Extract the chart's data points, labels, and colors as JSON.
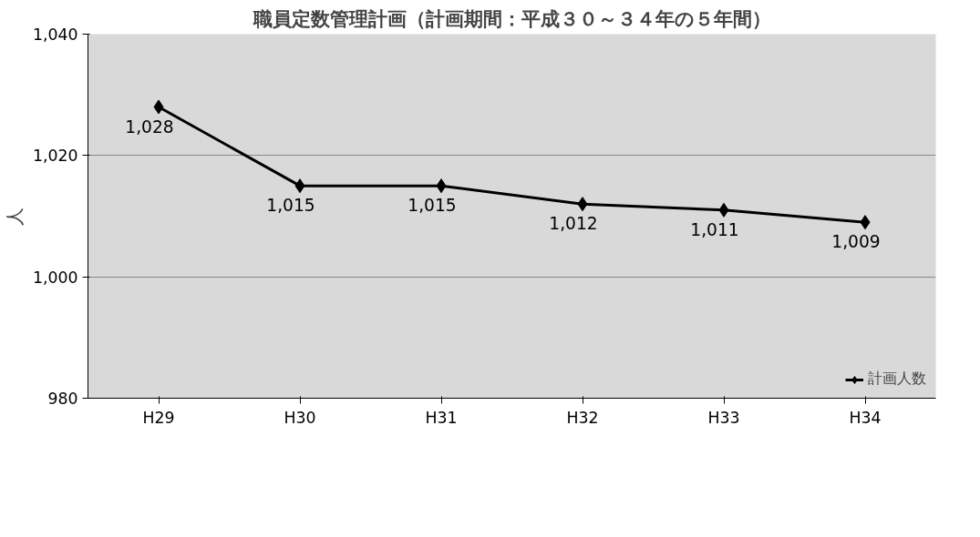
{
  "chart_data": {
    "type": "line",
    "title": "職員定数管理計画（計画期間：平成３０～３４年の５年間）",
    "ylabel": "人",
    "categories": [
      "H29",
      "H30",
      "H31",
      "H32",
      "H33",
      "H34"
    ],
    "series": [
      {
        "name": "計画人数",
        "color": "#000000",
        "values": [
          1028,
          1015,
          1015,
          1012,
          1011,
          1009
        ],
        "value_labels": [
          "1,028",
          "1,015",
          "1,015",
          "1,012",
          "1,011",
          "1,009"
        ]
      }
    ],
    "ylim": [
      980,
      1040
    ],
    "yticks": [
      {
        "value": 980,
        "label": "980"
      },
      {
        "value": 1000,
        "label": "1,000"
      },
      {
        "value": 1020,
        "label": "1,020"
      },
      {
        "value": 1040,
        "label": "1,040"
      }
    ],
    "grid": "y",
    "legend": "bottom right",
    "marker": "diamond",
    "line_style": "solid"
  }
}
